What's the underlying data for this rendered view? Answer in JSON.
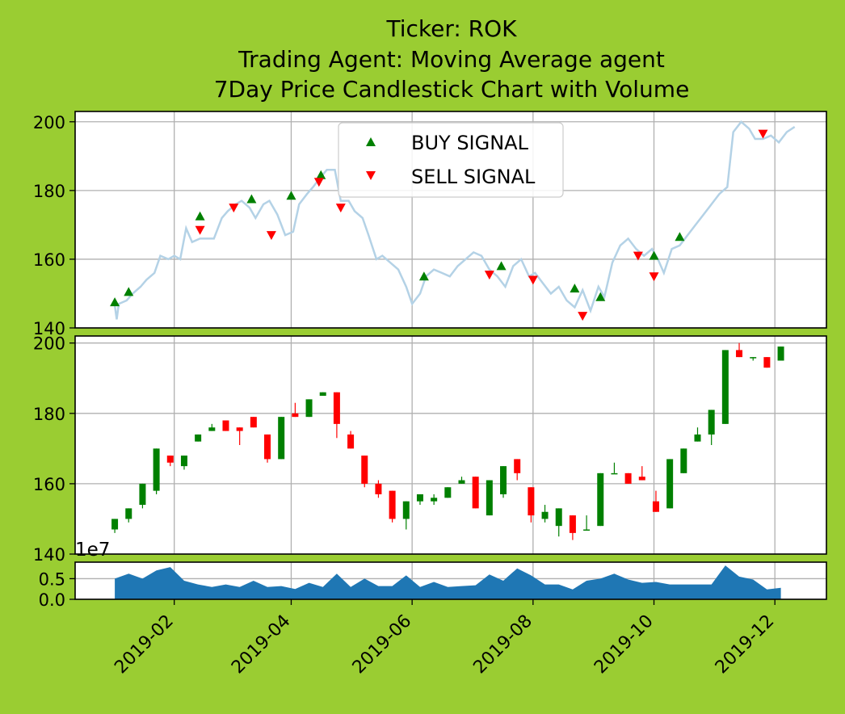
{
  "figure": {
    "background": "#9acd32",
    "title_lines": [
      "Ticker: ROK",
      "Trading Agent: Moving Average agent",
      "7Day Price Candlestick Chart with Volume"
    ]
  },
  "colors": {
    "price_line": "#b4d2e6",
    "buy": "#008000",
    "sell": "#ff0000",
    "up_candle": "#008000",
    "down_candle": "#ff0000",
    "volume": "#1f77b4",
    "grid": "#b0b0b0"
  },
  "chart_data": [
    {
      "type": "line",
      "panel": "price",
      "ylim": [
        140,
        203
      ],
      "yticks": [
        140,
        160,
        180,
        200
      ],
      "grid": true,
      "legend_placement": "upper-center",
      "legend": [
        {
          "label": "BUY SIGNAL",
          "marker": "triangle-up",
          "color": "#008000"
        },
        {
          "label": "SELL SIGNAL",
          "marker": "triangle-down",
          "color": "#ff0000"
        }
      ],
      "price": [
        [
          "2019-01-02",
          146.5
        ],
        [
          "2019-01-03",
          142.5
        ],
        [
          "2019-01-04",
          147
        ],
        [
          "2019-01-08",
          148
        ],
        [
          "2019-01-11",
          150
        ],
        [
          "2019-01-15",
          152
        ],
        [
          "2019-01-18",
          154
        ],
        [
          "2019-01-22",
          156
        ],
        [
          "2019-01-25",
          161
        ],
        [
          "2019-01-29",
          160
        ],
        [
          "2019-02-01",
          161
        ],
        [
          "2019-02-04",
          160
        ],
        [
          "2019-02-07",
          169
        ],
        [
          "2019-02-10",
          165
        ],
        [
          "2019-02-14",
          166
        ],
        [
          "2019-02-18",
          166
        ],
        [
          "2019-02-21",
          166
        ],
        [
          "2019-02-25",
          172
        ],
        [
          "2019-02-28",
          174
        ],
        [
          "2019-03-04",
          176
        ],
        [
          "2019-03-07",
          177
        ],
        [
          "2019-03-11",
          175
        ],
        [
          "2019-03-14",
          172
        ],
        [
          "2019-03-18",
          176
        ],
        [
          "2019-03-21",
          177
        ],
        [
          "2019-03-25",
          173
        ],
        [
          "2019-03-29",
          167
        ],
        [
          "2019-04-02",
          168
        ],
        [
          "2019-04-05",
          176
        ],
        [
          "2019-04-09",
          179
        ],
        [
          "2019-04-12",
          181
        ],
        [
          "2019-04-16",
          184
        ],
        [
          "2019-04-19",
          186
        ],
        [
          "2019-04-23",
          186
        ],
        [
          "2019-04-26",
          177
        ],
        [
          "2019-04-30",
          177
        ],
        [
          "2019-05-03",
          174
        ],
        [
          "2019-05-07",
          172
        ],
        [
          "2019-05-10",
          167
        ],
        [
          "2019-05-14",
          160
        ],
        [
          "2019-05-17",
          161
        ],
        [
          "2019-05-21",
          159
        ],
        [
          "2019-05-25",
          157
        ],
        [
          "2019-05-29",
          152
        ],
        [
          "2019-06-01",
          147
        ],
        [
          "2019-06-05",
          150
        ],
        [
          "2019-06-08",
          155
        ],
        [
          "2019-06-12",
          157
        ],
        [
          "2019-06-16",
          156
        ],
        [
          "2019-06-20",
          155
        ],
        [
          "2019-06-24",
          158
        ],
        [
          "2019-06-28",
          160
        ],
        [
          "2019-07-02",
          162
        ],
        [
          "2019-07-06",
          161
        ],
        [
          "2019-07-10",
          157
        ],
        [
          "2019-07-14",
          155
        ],
        [
          "2019-07-18",
          152
        ],
        [
          "2019-07-22",
          158
        ],
        [
          "2019-07-26",
          160
        ],
        [
          "2019-07-30",
          155
        ],
        [
          "2019-08-02",
          156
        ],
        [
          "2019-08-06",
          153
        ],
        [
          "2019-08-10",
          150
        ],
        [
          "2019-08-14",
          152
        ],
        [
          "2019-08-18",
          148
        ],
        [
          "2019-08-22",
          146
        ],
        [
          "2019-08-26",
          151
        ],
        [
          "2019-08-30",
          145
        ],
        [
          "2019-09-03",
          152
        ],
        [
          "2019-09-06",
          149
        ],
        [
          "2019-09-10",
          159
        ],
        [
          "2019-09-14",
          164
        ],
        [
          "2019-09-18",
          166
        ],
        [
          "2019-09-22",
          163
        ],
        [
          "2019-09-26",
          161
        ],
        [
          "2019-09-30",
          163
        ],
        [
          "2019-10-03",
          160
        ],
        [
          "2019-10-06",
          156
        ],
        [
          "2019-10-10",
          163
        ],
        [
          "2019-10-14",
          164
        ],
        [
          "2019-10-18",
          167
        ],
        [
          "2019-10-22",
          170
        ],
        [
          "2019-10-26",
          173
        ],
        [
          "2019-10-30",
          176
        ],
        [
          "2019-11-03",
          179
        ],
        [
          "2019-11-07",
          181
        ],
        [
          "2019-11-10",
          197
        ],
        [
          "2019-11-14",
          200
        ],
        [
          "2019-11-18",
          198
        ],
        [
          "2019-11-21",
          195
        ],
        [
          "2019-11-25",
          195
        ],
        [
          "2019-11-29",
          196
        ],
        [
          "2019-12-03",
          194
        ],
        [
          "2019-12-07",
          197
        ],
        [
          "2019-12-11",
          198.5
        ]
      ],
      "buy_signals": [
        [
          "2019-01-02",
          147.5
        ],
        [
          "2019-01-09",
          150.5
        ],
        [
          "2019-02-14",
          172.5
        ],
        [
          "2019-03-12",
          177.5
        ],
        [
          "2019-04-01",
          178.5
        ],
        [
          "2019-04-16",
          184.5
        ],
        [
          "2019-06-07",
          155
        ],
        [
          "2019-07-16",
          158
        ],
        [
          "2019-08-22",
          151.5
        ],
        [
          "2019-09-04",
          149
        ],
        [
          "2019-10-01",
          161
        ],
        [
          "2019-10-14",
          166.5
        ]
      ],
      "sell_signals": [
        [
          "2019-02-14",
          168.5
        ],
        [
          "2019-03-03",
          175
        ],
        [
          "2019-03-22",
          167
        ],
        [
          "2019-04-15",
          182.5
        ],
        [
          "2019-04-26",
          175
        ],
        [
          "2019-07-10",
          155.5
        ],
        [
          "2019-08-01",
          154
        ],
        [
          "2019-08-26",
          143.5
        ],
        [
          "2019-09-23",
          161
        ],
        [
          "2019-10-01",
          155
        ],
        [
          "2019-11-25",
          196.5
        ]
      ]
    },
    {
      "type": "candlestick",
      "panel": "candles",
      "ylim": [
        140,
        202
      ],
      "yticks": [
        140,
        160,
        180,
        200
      ],
      "grid": true,
      "candles": [
        [
          "2019-01-02",
          147,
          150,
          146,
          150
        ],
        [
          "2019-01-09",
          150,
          153,
          149,
          153
        ],
        [
          "2019-01-16",
          154,
          160,
          153,
          160
        ],
        [
          "2019-01-23",
          158,
          170,
          157,
          170
        ],
        [
          "2019-01-30",
          168,
          168,
          165,
          166
        ],
        [
          "2019-02-06",
          165,
          168,
          164,
          168
        ],
        [
          "2019-02-13",
          172,
          174,
          172,
          174
        ],
        [
          "2019-02-20",
          175,
          177,
          175,
          176
        ],
        [
          "2019-02-27",
          178,
          178,
          175,
          175
        ],
        [
          "2019-03-06",
          176,
          176,
          171,
          175
        ],
        [
          "2019-03-13",
          179,
          179,
          176,
          176
        ],
        [
          "2019-03-20",
          174,
          174,
          166,
          167
        ],
        [
          "2019-03-27",
          167,
          179,
          167,
          179
        ],
        [
          "2019-04-03",
          180,
          183,
          179,
          179
        ],
        [
          "2019-04-10",
          179,
          184,
          179,
          184
        ],
        [
          "2019-04-17",
          185,
          186,
          185,
          186
        ],
        [
          "2019-04-24",
          186,
          186,
          173,
          177
        ],
        [
          "2019-05-01",
          174,
          175,
          170,
          170
        ],
        [
          "2019-05-08",
          168,
          168,
          159,
          160
        ],
        [
          "2019-05-15",
          160,
          161,
          156,
          157
        ],
        [
          "2019-05-22",
          158,
          158,
          149,
          150
        ],
        [
          "2019-05-29",
          150,
          155,
          147,
          155
        ],
        [
          "2019-06-05",
          155,
          157,
          154,
          157
        ],
        [
          "2019-06-12",
          155,
          157,
          154,
          156
        ],
        [
          "2019-06-19",
          156,
          159,
          156,
          159
        ],
        [
          "2019-06-26",
          160,
          162,
          160,
          161
        ],
        [
          "2019-07-03",
          162,
          162,
          153,
          153
        ],
        [
          "2019-07-10",
          151,
          161,
          151,
          161
        ],
        [
          "2019-07-17",
          157,
          165,
          156,
          165
        ],
        [
          "2019-07-24",
          167,
          167,
          161,
          163
        ],
        [
          "2019-07-31",
          159,
          159,
          149,
          151
        ],
        [
          "2019-08-07",
          150,
          154,
          149,
          152
        ],
        [
          "2019-08-14",
          148,
          153,
          145,
          153
        ],
        [
          "2019-08-21",
          151,
          151,
          144,
          146
        ],
        [
          "2019-08-28",
          147,
          151,
          147,
          147
        ],
        [
          "2019-09-04",
          148,
          163,
          148,
          163
        ],
        [
          "2019-09-11",
          163,
          166,
          163,
          163
        ],
        [
          "2019-09-18",
          163,
          163,
          160,
          160
        ],
        [
          "2019-09-25",
          162,
          165,
          161,
          161
        ],
        [
          "2019-10-02",
          155,
          158,
          152,
          152
        ],
        [
          "2019-10-09",
          153,
          167,
          153,
          167
        ],
        [
          "2019-10-16",
          163,
          170,
          163,
          170
        ],
        [
          "2019-10-23",
          172,
          176,
          172,
          174
        ],
        [
          "2019-10-30",
          174,
          181,
          171,
          181
        ],
        [
          "2019-11-06",
          177,
          198,
          177,
          198
        ],
        [
          "2019-11-13",
          198,
          200,
          196,
          196
        ],
        [
          "2019-11-20",
          196,
          196,
          195,
          196
        ],
        [
          "2019-11-27",
          196,
          196,
          193,
          193
        ],
        [
          "2019-12-04",
          195,
          199,
          195,
          199
        ]
      ]
    },
    {
      "type": "area",
      "panel": "volume",
      "ylim": [
        0,
        0.9
      ],
      "yticks": [
        0.0,
        0.5
      ],
      "ytick_labels": [
        "0.0",
        "0.5"
      ],
      "multiplier": "1e7",
      "grid": true,
      "x": [
        "2019-01-02",
        "2019-01-09",
        "2019-01-16",
        "2019-01-23",
        "2019-01-30",
        "2019-02-06",
        "2019-02-13",
        "2019-02-20",
        "2019-02-27",
        "2019-03-06",
        "2019-03-13",
        "2019-03-20",
        "2019-03-27",
        "2019-04-03",
        "2019-04-10",
        "2019-04-17",
        "2019-04-24",
        "2019-05-01",
        "2019-05-08",
        "2019-05-15",
        "2019-05-22",
        "2019-05-29",
        "2019-06-05",
        "2019-06-12",
        "2019-06-19",
        "2019-06-26",
        "2019-07-03",
        "2019-07-10",
        "2019-07-17",
        "2019-07-24",
        "2019-07-31",
        "2019-08-07",
        "2019-08-14",
        "2019-08-21",
        "2019-08-28",
        "2019-09-04",
        "2019-09-11",
        "2019-09-18",
        "2019-09-25",
        "2019-10-02",
        "2019-10-09",
        "2019-10-16",
        "2019-10-23",
        "2019-10-30",
        "2019-11-06",
        "2019-11-13",
        "2019-11-20",
        "2019-11-27",
        "2019-12-04"
      ],
      "values": [
        0.5,
        0.62,
        0.5,
        0.7,
        0.78,
        0.45,
        0.36,
        0.3,
        0.36,
        0.3,
        0.45,
        0.3,
        0.32,
        0.25,
        0.4,
        0.3,
        0.62,
        0.3,
        0.5,
        0.32,
        0.32,
        0.58,
        0.3,
        0.42,
        0.3,
        0.32,
        0.34,
        0.6,
        0.45,
        0.75,
        0.58,
        0.36,
        0.36,
        0.24,
        0.45,
        0.5,
        0.62,
        0.48,
        0.4,
        0.42,
        0.36,
        0.36,
        0.36,
        0.36,
        0.82,
        0.55,
        0.48,
        0.24,
        0.28
      ]
    }
  ],
  "x_axis": {
    "range": [
      "2018-12-13",
      "2019-12-27"
    ],
    "ticks": [
      "2019-02-01",
      "2019-04-01",
      "2019-06-01",
      "2019-08-01",
      "2019-10-01",
      "2019-12-01"
    ],
    "tick_labels": [
      "2019-02",
      "2019-04",
      "2019-06",
      "2019-08",
      "2019-10",
      "2019-12"
    ]
  }
}
